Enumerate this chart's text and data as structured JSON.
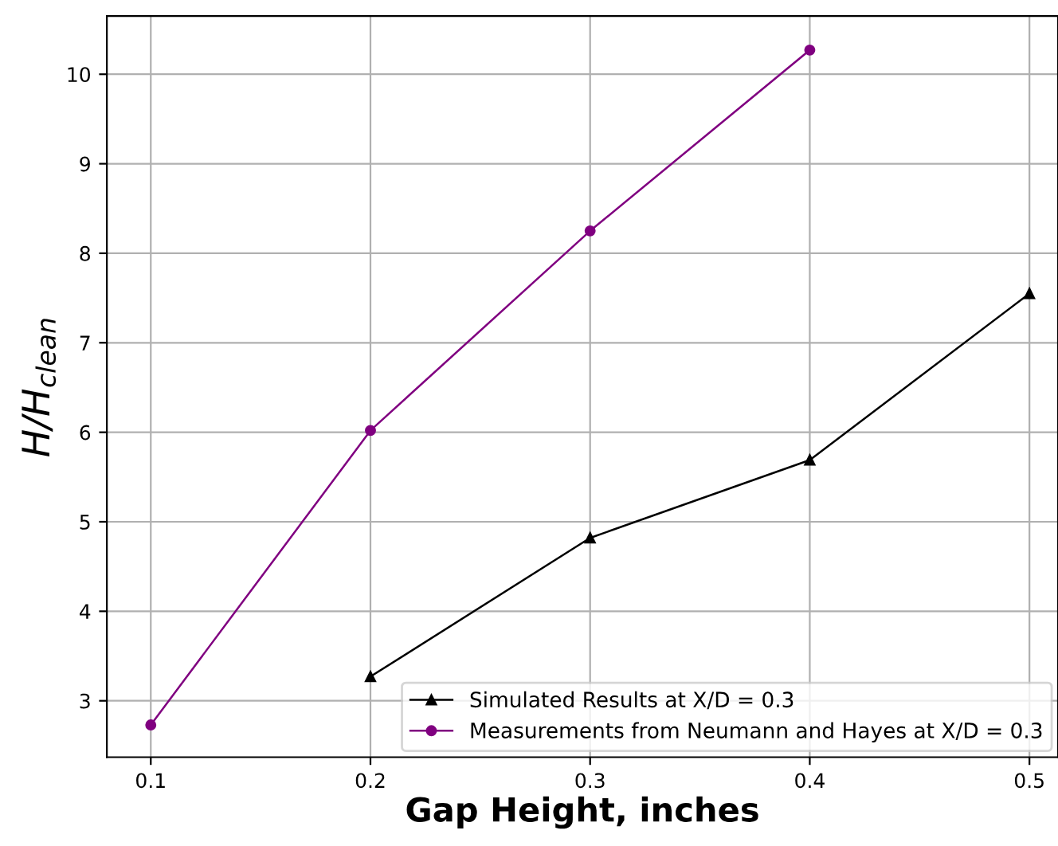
{
  "chart_data": {
    "type": "line",
    "xlabel": "Gap Height, inches",
    "ylabel": "H/H$_{clean}$",
    "xlim": [
      0.08,
      0.513
    ],
    "xticks": [
      0.1,
      0.2,
      0.3,
      0.4,
      0.5
    ],
    "ylim": [
      2.37,
      10.65
    ],
    "yticks": [
      3,
      4,
      5,
      6,
      7,
      8,
      9,
      10
    ],
    "grid": true,
    "legend": "bottom right",
    "line_style": "solid",
    "series": [
      {
        "name": "Simulated Results at X/D = 0.3",
        "color": "#000000",
        "marker": "triangle",
        "x": [
          0.2,
          0.3,
          0.4,
          0.5
        ],
        "values": [
          3.27,
          4.82,
          5.69,
          7.55
        ]
      },
      {
        "name": "Measurements from Neumann and Hayes at X/D = 0.3",
        "color": "#800080",
        "marker": "circle",
        "x": [
          0.1,
          0.2,
          0.3,
          0.4
        ],
        "values": [
          2.73,
          6.02,
          8.25,
          10.27
        ]
      }
    ]
  }
}
